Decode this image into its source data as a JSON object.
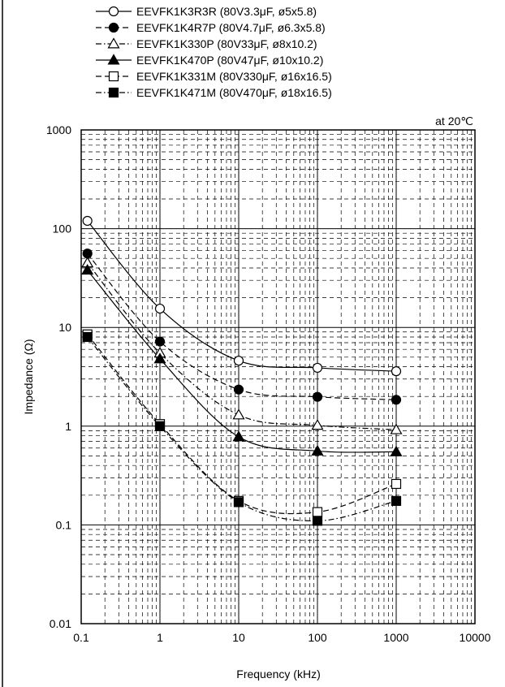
{
  "chart_data": {
    "type": "line",
    "xscale": "log",
    "yscale": "log",
    "xlim": [
      0.1,
      10000
    ],
    "ylim": [
      0.01,
      1000
    ],
    "xlabel": "Frequency (kHz)",
    "ylabel": "Impedance (Ω)",
    "annotation": "at 20℃",
    "grid": true,
    "legend_position": "top",
    "x_ticks": [
      "0.1",
      "1",
      "10",
      "100",
      "1000",
      "10000"
    ],
    "y_ticks": [
      "0.01",
      "0.1",
      "1",
      "10",
      "100",
      "1000"
    ],
    "series": [
      {
        "name": "EEVFK1K3R3R (80V3.3μF, ø5x5.8)",
        "marker": "circle-open",
        "dash": "solid",
        "x": [
          0.12,
          1,
          10,
          100,
          1000
        ],
        "y": [
          120,
          15.5,
          4.6,
          3.9,
          3.6
        ]
      },
      {
        "name": "EEVFK1K4R7P (80V4.7μF, ø6.3x5.8)",
        "marker": "circle-filled",
        "dash": "dashed",
        "x": [
          0.12,
          1,
          10,
          100,
          1000
        ],
        "y": [
          56,
          7.2,
          2.35,
          1.98,
          1.85
        ]
      },
      {
        "name": "EEVFK1K330P (80V33μF, ø8x10.2)",
        "marker": "triangle-open",
        "dash": "dashdot",
        "x": [
          0.12,
          1,
          10,
          100,
          1000
        ],
        "y": [
          45,
          5.5,
          1.3,
          1.02,
          0.92
        ]
      },
      {
        "name": "EEVFK1K470P (80V47μF, ø10x10.2)",
        "marker": "triangle-filled",
        "dash": "solid",
        "x": [
          0.12,
          1,
          10,
          100,
          1000
        ],
        "y": [
          38,
          4.8,
          0.78,
          0.56,
          0.55
        ]
      },
      {
        "name": "EEVFK1K331M (80V330μF, ø16x16.5)",
        "marker": "square-open",
        "dash": "dashed",
        "x": [
          0.12,
          1,
          10,
          100,
          1000
        ],
        "y": [
          8.5,
          1.05,
          0.175,
          0.135,
          0.26
        ]
      },
      {
        "name": "EEVFK1K471M (80V470μF, ø18x16.5)",
        "marker": "square-filled",
        "dash": "dashdot",
        "x": [
          0.12,
          1,
          10,
          100,
          1000
        ],
        "y": [
          8,
          1.0,
          0.17,
          0.11,
          0.175
        ]
      }
    ]
  }
}
